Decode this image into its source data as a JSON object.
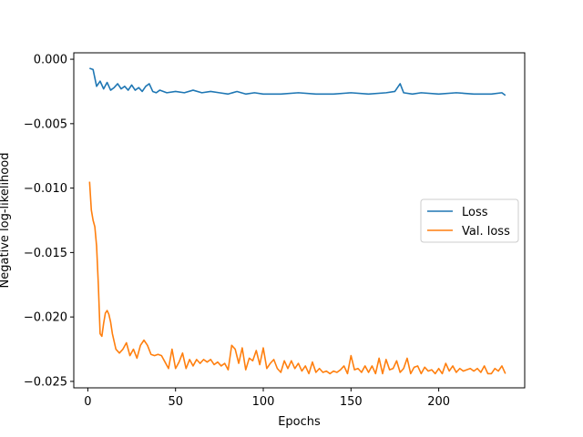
{
  "chart_data": {
    "type": "line",
    "title": "",
    "xlabel": "Epochs",
    "ylabel": "Negative log-likelihood",
    "xlim": [
      -8,
      249
    ],
    "ylim": [
      -0.0255,
      0.0005
    ],
    "xticks": [
      0,
      50,
      100,
      150,
      200
    ],
    "yticks": [
      0.0,
      -0.005,
      -0.01,
      -0.015,
      -0.02,
      -0.025
    ],
    "ytick_labels": [
      "0.000",
      "−0.005",
      "−0.010",
      "−0.015",
      "−0.020",
      "−0.025"
    ],
    "grid": false,
    "legend_position": "center-right",
    "series": [
      {
        "name": "Loss",
        "color": "#1f77b4",
        "x": [
          1,
          3,
          5,
          7,
          9,
          11,
          13,
          15,
          17,
          19,
          21,
          23,
          25,
          27,
          29,
          31,
          33,
          35,
          37,
          39,
          41,
          45,
          50,
          55,
          60,
          65,
          70,
          75,
          80,
          85,
          90,
          95,
          100,
          110,
          120,
          130,
          140,
          150,
          160,
          170,
          175,
          178,
          180,
          185,
          190,
          200,
          210,
          220,
          230,
          236,
          238
        ],
        "y": [
          -0.0007,
          -0.0008,
          -0.0021,
          -0.0017,
          -0.0023,
          -0.0018,
          -0.0024,
          -0.0022,
          -0.0019,
          -0.0023,
          -0.0021,
          -0.0024,
          -0.002,
          -0.0024,
          -0.0022,
          -0.0025,
          -0.0021,
          -0.0019,
          -0.0025,
          -0.0026,
          -0.0024,
          -0.0026,
          -0.0025,
          -0.0026,
          -0.0024,
          -0.0026,
          -0.0025,
          -0.0026,
          -0.0027,
          -0.0025,
          -0.0027,
          -0.0026,
          -0.0027,
          -0.0027,
          -0.0026,
          -0.0027,
          -0.0027,
          -0.0026,
          -0.0027,
          -0.0026,
          -0.0025,
          -0.0019,
          -0.0026,
          -0.0027,
          -0.0026,
          -0.0027,
          -0.0026,
          -0.0027,
          -0.0027,
          -0.0026,
          -0.0028
        ]
      },
      {
        "name": "Val. loss",
        "color": "#ff7f0e",
        "x": [
          1,
          2,
          3,
          4,
          5,
          6,
          7,
          8,
          9,
          10,
          11,
          12,
          13,
          14,
          16,
          18,
          20,
          22,
          24,
          26,
          28,
          30,
          32,
          34,
          36,
          38,
          40,
          42,
          44,
          46,
          48,
          50,
          52,
          54,
          56,
          58,
          60,
          62,
          64,
          66,
          68,
          70,
          72,
          74,
          76,
          78,
          80,
          82,
          84,
          86,
          88,
          90,
          92,
          94,
          96,
          98,
          100,
          102,
          104,
          106,
          108,
          110,
          112,
          114,
          116,
          118,
          120,
          122,
          124,
          126,
          128,
          130,
          132,
          134,
          136,
          138,
          140,
          142,
          144,
          146,
          148,
          150,
          152,
          154,
          156,
          158,
          160,
          162,
          164,
          166,
          168,
          170,
          172,
          174,
          176,
          178,
          180,
          182,
          184,
          186,
          188,
          190,
          192,
          194,
          196,
          198,
          200,
          202,
          204,
          206,
          208,
          210,
          212,
          214,
          216,
          218,
          220,
          222,
          224,
          226,
          228,
          230,
          232,
          234,
          236,
          238
        ],
        "y": [
          -0.0095,
          -0.0117,
          -0.0125,
          -0.013,
          -0.0145,
          -0.0175,
          -0.0213,
          -0.0215,
          -0.0205,
          -0.0197,
          -0.0195,
          -0.0198,
          -0.0204,
          -0.0213,
          -0.0225,
          -0.0228,
          -0.0225,
          -0.022,
          -0.023,
          -0.0225,
          -0.0232,
          -0.0222,
          -0.0218,
          -0.0222,
          -0.0229,
          -0.023,
          -0.0229,
          -0.023,
          -0.0235,
          -0.024,
          -0.0225,
          -0.024,
          -0.0235,
          -0.0228,
          -0.024,
          -0.0233,
          -0.0238,
          -0.0233,
          -0.0236,
          -0.0233,
          -0.0235,
          -0.0233,
          -0.0237,
          -0.0235,
          -0.0238,
          -0.0236,
          -0.0241,
          -0.0222,
          -0.0225,
          -0.0236,
          -0.0224,
          -0.0241,
          -0.0232,
          -0.0234,
          -0.0226,
          -0.0237,
          -0.0224,
          -0.024,
          -0.0236,
          -0.0233,
          -0.024,
          -0.0243,
          -0.0234,
          -0.024,
          -0.0234,
          -0.024,
          -0.0236,
          -0.0242,
          -0.0238,
          -0.0244,
          -0.0235,
          -0.0243,
          -0.024,
          -0.0243,
          -0.0242,
          -0.0244,
          -0.0242,
          -0.0243,
          -0.0241,
          -0.0238,
          -0.0244,
          -0.023,
          -0.0241,
          -0.024,
          -0.0243,
          -0.0238,
          -0.0243,
          -0.0238,
          -0.0244,
          -0.0232,
          -0.0244,
          -0.0233,
          -0.0241,
          -0.024,
          -0.0234,
          -0.0243,
          -0.024,
          -0.0232,
          -0.0244,
          -0.0239,
          -0.0238,
          -0.0244,
          -0.0239,
          -0.0242,
          -0.0241,
          -0.0244,
          -0.024,
          -0.0244,
          -0.0236,
          -0.0242,
          -0.0238,
          -0.0243,
          -0.024,
          -0.0242,
          -0.0241,
          -0.024,
          -0.0242,
          -0.024,
          -0.0243,
          -0.0238,
          -0.0244,
          -0.0244,
          -0.024,
          -0.0242,
          -0.0238,
          -0.0244
        ]
      }
    ]
  }
}
